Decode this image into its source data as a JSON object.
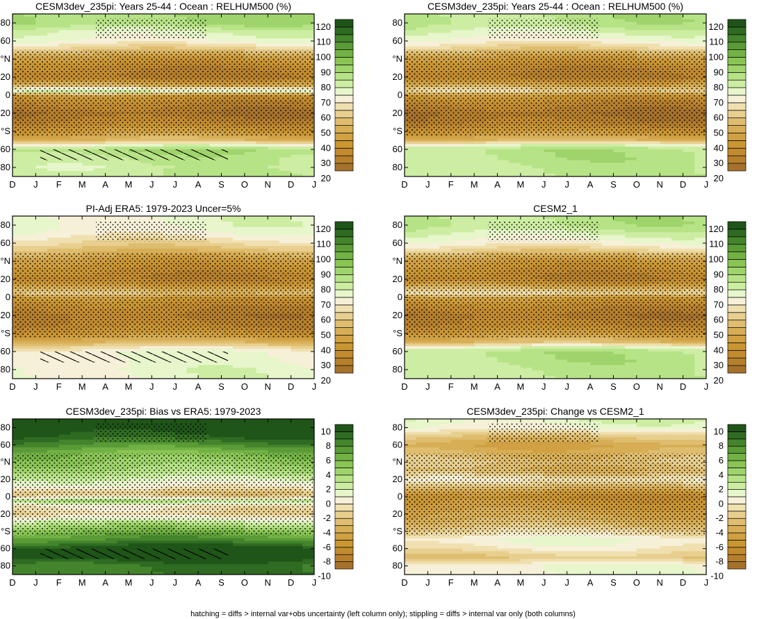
{
  "footer": "hatching = diffs > internal var+obs uncertainty (left column only); stippling = diffs > internal var only (both columns)",
  "months": [
    "D",
    "J",
    "F",
    "M",
    "A",
    "M",
    "J",
    "J",
    "A",
    "S",
    "O",
    "N",
    "D",
    "J"
  ],
  "lat_labels": [
    "80",
    "60",
    "°N",
    "20",
    "0",
    "20",
    "°S",
    "60",
    "80"
  ],
  "chart_data": [
    {
      "type": "heatmap",
      "title": "CESM3dev_235pi: Years 25-44 : Ocean : RELHUM500 (%)",
      "x": [
        "D",
        "J",
        "F",
        "M",
        "A",
        "M",
        "J",
        "J",
        "A",
        "S",
        "O",
        "N",
        "D",
        "J"
      ],
      "y_tick_labels": [
        "80",
        "60",
        "°N",
        "20",
        "0",
        "20",
        "°S",
        "60",
        "80"
      ],
      "colorbar_levels": [
        20,
        25,
        30,
        35,
        40,
        45,
        50,
        55,
        60,
        65,
        70,
        75,
        80,
        85,
        90,
        95,
        100,
        105,
        110,
        115,
        120
      ],
      "colorbar_labels": [
        "120",
        "110",
        "100",
        "90",
        "80",
        "70",
        "60",
        "50",
        "40",
        "30",
        "20"
      ],
      "colorscale": "brown-white-green",
      "zonal_profile": {
        "lat": [
          90,
          80,
          70,
          60,
          50,
          40,
          30,
          20,
          10,
          5,
          0,
          -10,
          -20,
          -30,
          -40,
          -50,
          -55,
          -60,
          -70,
          -80,
          -90
        ],
        "value": [
          85,
          85,
          75,
          70,
          55,
          40,
          32,
          28,
          50,
          78,
          40,
          30,
          25,
          30,
          40,
          50,
          70,
          85,
          80,
          78,
          80
        ]
      },
      "stippling": true,
      "hatching": true
    },
    {
      "type": "heatmap",
      "title": "CESM3dev_235pi: Years 25-44 : Ocean : RELHUM500 (%)",
      "x": [
        "D",
        "J",
        "F",
        "M",
        "A",
        "M",
        "J",
        "J",
        "A",
        "S",
        "O",
        "N",
        "D",
        "J"
      ],
      "y_tick_labels": [
        "80",
        "60",
        "°N",
        "20",
        "0",
        "20",
        "°S",
        "60",
        "80"
      ],
      "colorbar_levels": [
        20,
        25,
        30,
        35,
        40,
        45,
        50,
        55,
        60,
        65,
        70,
        75,
        80,
        85,
        90,
        95,
        100,
        105,
        110,
        115,
        120
      ],
      "colorbar_labels": [
        "120",
        "110",
        "100",
        "90",
        "80",
        "70",
        "60",
        "50",
        "40",
        "30",
        "20"
      ],
      "colorscale": "brown-white-green",
      "zonal_profile": {
        "lat": [
          90,
          80,
          70,
          60,
          50,
          40,
          30,
          20,
          10,
          5,
          0,
          -10,
          -20,
          -30,
          -40,
          -50,
          -55,
          -60,
          -70,
          -80,
          -90
        ],
        "value": [
          82,
          82,
          75,
          68,
          55,
          40,
          32,
          28,
          48,
          60,
          40,
          30,
          25,
          28,
          38,
          50,
          72,
          82,
          82,
          80,
          80
        ]
      },
      "stippling": true,
      "hatching": false
    },
    {
      "type": "heatmap",
      "title": "PI-Adj ERA5: 1979-2023 Uncer=5%",
      "x": [
        "D",
        "J",
        "F",
        "M",
        "A",
        "M",
        "J",
        "J",
        "A",
        "S",
        "O",
        "N",
        "D",
        "J"
      ],
      "y_tick_labels": [
        "80",
        "60",
        "°N",
        "20",
        "0",
        "20",
        "°S",
        "60",
        "80"
      ],
      "colorbar_levels": [
        20,
        25,
        30,
        35,
        40,
        45,
        50,
        55,
        60,
        65,
        70,
        75,
        80,
        85,
        90,
        95,
        100,
        105,
        110,
        115,
        120
      ],
      "colorbar_labels": [
        "120",
        "110",
        "100",
        "90",
        "80",
        "70",
        "60",
        "50",
        "40",
        "30",
        "20"
      ],
      "colorscale": "brown-white-green",
      "zonal_profile": {
        "lat": [
          90,
          80,
          70,
          60,
          50,
          40,
          30,
          20,
          10,
          5,
          0,
          -10,
          -20,
          -30,
          -40,
          -50,
          -55,
          -60,
          -70,
          -80,
          -90
        ],
        "value": [
          72,
          72,
          68,
          60,
          50,
          40,
          34,
          30,
          45,
          55,
          40,
          32,
          28,
          30,
          38,
          50,
          62,
          70,
          70,
          72,
          72
        ]
      },
      "stippling": true,
      "hatching": true
    },
    {
      "type": "heatmap",
      "title": "CESM2_1",
      "x": [
        "D",
        "J",
        "F",
        "M",
        "A",
        "M",
        "J",
        "J",
        "A",
        "S",
        "O",
        "N",
        "D",
        "J"
      ],
      "y_tick_labels": [
        "80",
        "60",
        "°N",
        "20",
        "0",
        "20",
        "°S",
        "60",
        "80"
      ],
      "colorbar_levels": [
        20,
        25,
        30,
        35,
        40,
        45,
        50,
        55,
        60,
        65,
        70,
        75,
        80,
        85,
        90,
        95,
        100,
        105,
        110,
        115,
        120
      ],
      "colorbar_labels": [
        "120",
        "110",
        "100",
        "90",
        "80",
        "70",
        "60",
        "50",
        "40",
        "30",
        "20"
      ],
      "colorscale": "brown-white-green",
      "zonal_profile": {
        "lat": [
          90,
          80,
          70,
          60,
          50,
          40,
          30,
          20,
          10,
          5,
          0,
          -10,
          -20,
          -30,
          -40,
          -50,
          -55,
          -60,
          -70,
          -80,
          -90
        ],
        "value": [
          82,
          82,
          75,
          68,
          55,
          40,
          34,
          30,
          50,
          62,
          42,
          32,
          27,
          30,
          40,
          52,
          72,
          82,
          82,
          80,
          80
        ]
      },
      "stippling": true,
      "hatching": false
    },
    {
      "type": "heatmap",
      "title": "CESM3dev_235pi: Bias vs ERA5: 1979-2023",
      "x": [
        "D",
        "J",
        "F",
        "M",
        "A",
        "M",
        "J",
        "J",
        "A",
        "S",
        "O",
        "N",
        "D",
        "J"
      ],
      "y_tick_labels": [
        "80",
        "60",
        "°N",
        "20",
        "0",
        "20",
        "°S",
        "60",
        "80"
      ],
      "colorbar_levels": [
        -10,
        -9,
        -8,
        -7,
        -6,
        -5,
        -4,
        -3,
        -2,
        -1,
        0,
        1,
        2,
        3,
        4,
        5,
        6,
        7,
        8,
        9,
        10
      ],
      "colorbar_labels": [
        "10",
        "8",
        "6",
        "4",
        "2",
        "0",
        "-2",
        "-4",
        "-6",
        "-8",
        "-10"
      ],
      "colorscale": "brown-white-green",
      "zonal_profile": {
        "lat": [
          90,
          80,
          70,
          60,
          50,
          40,
          30,
          20,
          10,
          5,
          0,
          -5,
          -10,
          -20,
          -30,
          -40,
          -50,
          -60,
          -70,
          -80,
          -90
        ],
        "value": [
          10,
          10,
          9,
          7,
          5,
          4,
          3,
          1,
          -1,
          -3,
          -2,
          3,
          -1,
          -2,
          2,
          5,
          7,
          10,
          10,
          8,
          8
        ]
      },
      "stippling": true,
      "hatching": true
    },
    {
      "type": "heatmap",
      "title": "CESM3dev_235pi: Change vs CESM2_1",
      "x": [
        "D",
        "J",
        "F",
        "M",
        "A",
        "M",
        "J",
        "J",
        "A",
        "S",
        "O",
        "N",
        "D",
        "J"
      ],
      "y_tick_labels": [
        "80",
        "60",
        "°N",
        "20",
        "0",
        "20",
        "°S",
        "60",
        "80"
      ],
      "colorbar_levels": [
        -10,
        -9,
        -8,
        -7,
        -6,
        -5,
        -4,
        -3,
        -2,
        -1,
        0,
        1,
        2,
        3,
        4,
        5,
        6,
        7,
        8,
        9,
        10
      ],
      "colorbar_labels": [
        "10",
        "8",
        "6",
        "4",
        "2",
        "0",
        "-2",
        "-4",
        "-6",
        "-8",
        "-10"
      ],
      "colorscale": "brown-white-green",
      "zonal_profile": {
        "lat": [
          90,
          80,
          70,
          60,
          50,
          40,
          30,
          20,
          10,
          5,
          0,
          -10,
          -20,
          -30,
          -40,
          -50,
          -60,
          -70,
          -80,
          -90
        ],
        "value": [
          1,
          0,
          -3,
          -5,
          -4,
          -3,
          -4,
          -1,
          -4,
          -6,
          -7,
          -6,
          -5,
          -4,
          -2,
          0,
          -1,
          -3,
          0,
          0
        ]
      },
      "stippling": true,
      "hatching": false
    }
  ]
}
